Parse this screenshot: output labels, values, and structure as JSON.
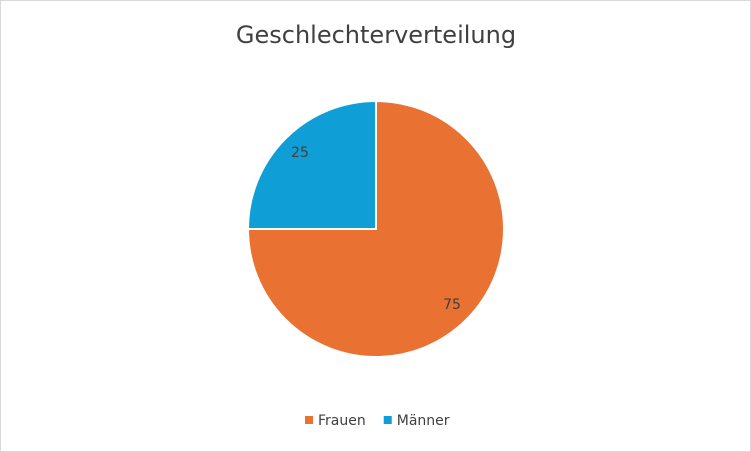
{
  "chart_data": {
    "type": "pie",
    "title": "Geschlechterverteilung",
    "categories": [
      "Frauen",
      "Männer"
    ],
    "values": [
      75,
      25
    ],
    "colors": [
      "#e97132",
      "#0f9ed5"
    ],
    "legend": "bottom",
    "data_labels": true
  }
}
